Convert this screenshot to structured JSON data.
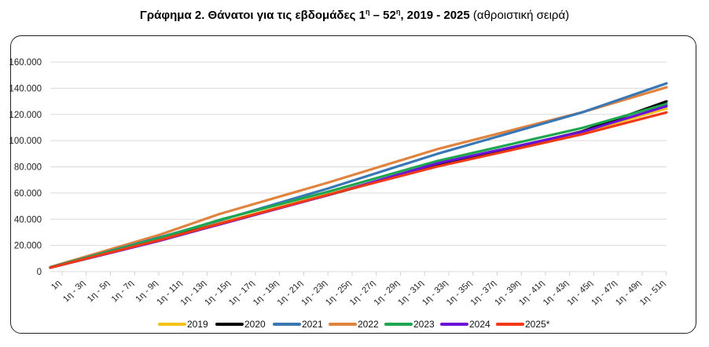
{
  "title": {
    "bold": "Γράφημα 2. Θάνατοι για τις εβδομάδες 1",
    "sup1": "η",
    "mid": " – 52",
    "sup2": "η",
    "bold_end": ", 2019 - 2025",
    "normal": " (αθροιστική σειρά)"
  },
  "chart_data": {
    "type": "line",
    "title": "Γράφημα 2. Θάνατοι για τις εβδομάδες 1η – 52η, 2019 - 2025 (αθροιστική σειρά)",
    "xlabel": "",
    "ylabel": "",
    "ylim": [
      0,
      160000
    ],
    "xlim": [
      1,
      52
    ],
    "grid": true,
    "legend_position": "bottom",
    "y_ticks": [
      {
        "value": 0,
        "label": "0"
      },
      {
        "value": 20000,
        "label": "20.000"
      },
      {
        "value": 40000,
        "label": "40.000"
      },
      {
        "value": 60000,
        "label": "60.000"
      },
      {
        "value": 80000,
        "label": "80.000"
      },
      {
        "value": 100000,
        "label": "100.000"
      },
      {
        "value": 120000,
        "label": "120.000"
      },
      {
        "value": 140000,
        "label": "140.000"
      },
      {
        "value": 160000,
        "label": "160.000"
      }
    ],
    "x_ticks": [
      {
        "week": 1,
        "label": "1η"
      },
      {
        "week": 3,
        "label": "1η - 3η"
      },
      {
        "week": 5,
        "label": "1η - 5η"
      },
      {
        "week": 7,
        "label": "1η - 7η"
      },
      {
        "week": 9,
        "label": "1η - 9η"
      },
      {
        "week": 11,
        "label": "1η - 11η"
      },
      {
        "week": 13,
        "label": "1η - 13η"
      },
      {
        "week": 15,
        "label": "1η - 15η"
      },
      {
        "week": 17,
        "label": "1η - 17η"
      },
      {
        "week": 19,
        "label": "1η - 19η"
      },
      {
        "week": 21,
        "label": "1η - 21η"
      },
      {
        "week": 23,
        "label": "1η - 23η"
      },
      {
        "week": 25,
        "label": "1η - 25η"
      },
      {
        "week": 27,
        "label": "1η - 27η"
      },
      {
        "week": 29,
        "label": "1η - 29η"
      },
      {
        "week": 31,
        "label": "1η - 31η"
      },
      {
        "week": 33,
        "label": "1η - 33η"
      },
      {
        "week": 35,
        "label": "1η - 35η"
      },
      {
        "week": 37,
        "label": "1η - 37η"
      },
      {
        "week": 39,
        "label": "1η - 39η"
      },
      {
        "week": 41,
        "label": "1η - 41η"
      },
      {
        "week": 43,
        "label": "1η - 43η"
      },
      {
        "week": 45,
        "label": "1η - 45η"
      },
      {
        "week": 47,
        "label": "1η - 47η"
      },
      {
        "week": 49,
        "label": "1η - 49η"
      },
      {
        "week": 51,
        "label": "1η - 51η"
      }
    ],
    "series": [
      {
        "name": "2019",
        "color": "#f5c218",
        "weeks": [
          1,
          10,
          15,
          24,
          33,
          45,
          52
        ],
        "values": [
          3200,
          25000,
          37000,
          59000,
          81500,
          106000,
          124500
        ]
      },
      {
        "name": "2020",
        "color": "#000000",
        "weeks": [
          1,
          10,
          15,
          24,
          33,
          45,
          52
        ],
        "values": [
          3000,
          24500,
          36500,
          58500,
          81000,
          107000,
          130000
        ]
      },
      {
        "name": "2021",
        "color": "#3a78b5",
        "weeks": [
          1,
          10,
          15,
          24,
          33,
          45,
          52
        ],
        "values": [
          3300,
          26000,
          39000,
          63500,
          89800,
          121500,
          143700
        ]
      },
      {
        "name": "2022",
        "color": "#e0833f",
        "weeks": [
          1,
          10,
          15,
          24,
          33,
          45,
          52
        ],
        "values": [
          3500,
          28000,
          44000,
          68000,
          93400,
          121600,
          140700
        ]
      },
      {
        "name": "2023",
        "color": "#1ea650",
        "weeks": [
          1,
          10,
          15,
          24,
          33,
          45,
          52
        ],
        "values": [
          3300,
          25500,
          39500,
          61000,
          84400,
          109600,
          128000
        ]
      },
      {
        "name": "2024",
        "color": "#6a12d8",
        "weeks": [
          1,
          10,
          15,
          24,
          33,
          45,
          52
        ],
        "values": [
          3000,
          23500,
          36000,
          58500,
          82600,
          106600,
          126300
        ]
      },
      {
        "name": "2025*",
        "color": "#f03a17",
        "weeks": [
          1,
          10,
          15,
          24,
          33,
          45,
          52
        ],
        "values": [
          3000,
          24000,
          36500,
          58700,
          80200,
          104800,
          121500
        ]
      }
    ]
  }
}
